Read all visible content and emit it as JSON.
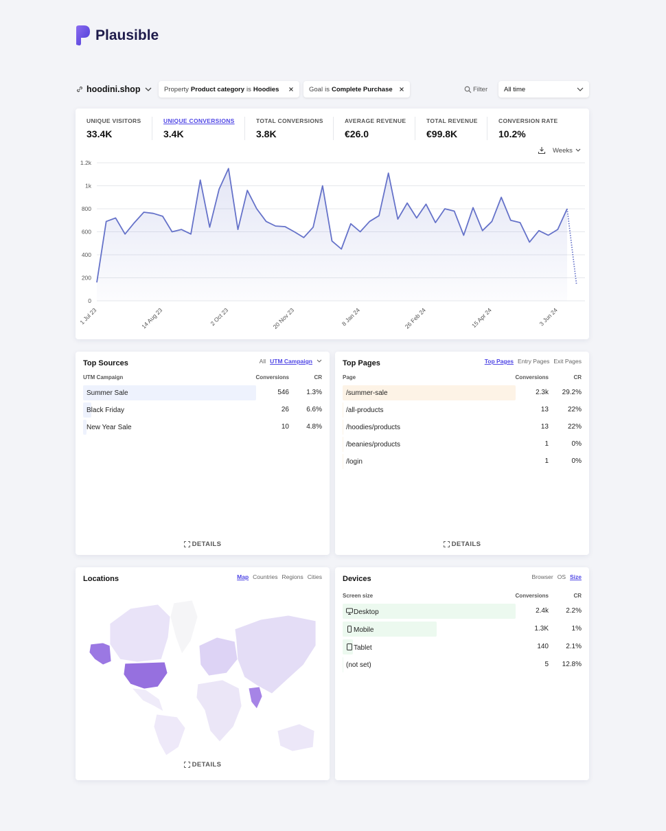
{
  "header": {
    "logo": "Plausible",
    "site": "hoodini.shop",
    "filters": [
      {
        "key": "Property",
        "property": "Product category",
        "op": "is",
        "value": "Hoodies"
      },
      {
        "key": "Goal",
        "op": "is",
        "value": "Complete Purchase"
      }
    ],
    "filter_button": "Filter",
    "period": "All time"
  },
  "metrics": [
    {
      "label": "UNIQUE VISITORS",
      "value": "33.4K"
    },
    {
      "label": "UNIQUE CONVERSIONS",
      "value": "3.4K"
    },
    {
      "label": "TOTAL CONVERSIONS",
      "value": "3.8K"
    },
    {
      "label": "AVERAGE REVENUE",
      "value": "€26.0"
    },
    {
      "label": "TOTAL REVENUE",
      "value": "€99.8K"
    },
    {
      "label": "CONVERSION RATE",
      "value": "10.2%"
    }
  ],
  "active_metric": 1,
  "interval": "Weeks",
  "chart_data": {
    "type": "line",
    "categories": [
      "1 Jul 23",
      null,
      null,
      null,
      null,
      null,
      null,
      "14 Aug 23",
      null,
      null,
      null,
      null,
      null,
      null,
      "2 Oct 23",
      null,
      null,
      null,
      null,
      null,
      null,
      "20 Nov 23",
      null,
      null,
      null,
      null,
      null,
      null,
      "8 Jan 24",
      null,
      null,
      null,
      null,
      null,
      null,
      "26 Feb 24",
      null,
      null,
      null,
      null,
      null,
      null,
      "15 Apr 24",
      null,
      null,
      null,
      null,
      null,
      null,
      "3 Jun 24",
      null,
      null
    ],
    "series": [
      {
        "color": "#6572c9",
        "values": [
          160,
          690,
          720,
          580,
          680,
          770,
          760,
          735,
          600,
          620,
          580,
          1050,
          640,
          970,
          1150,
          620,
          960,
          800,
          690,
          650,
          645,
          600,
          550,
          640,
          1000,
          520,
          450,
          670,
          600,
          690,
          740,
          1110,
          710,
          850,
          720,
          840,
          680,
          800,
          780,
          570,
          810,
          610,
          690,
          900,
          700,
          680,
          510,
          610,
          570,
          620,
          800,
          140
        ]
      }
    ],
    "last_segment_dotted": true,
    "ylim": [
      0,
      1200
    ],
    "yticks": [
      0,
      200,
      400,
      600,
      800,
      {
        "value": 1000,
        "label": "1k"
      },
      {
        "value": 1200,
        "label": "1.2k"
      }
    ],
    "grid": true
  },
  "top_sources": {
    "title": "Top Sources",
    "tabs": [
      "All",
      "UTM Campaign"
    ],
    "active_tab": 1,
    "columns": [
      "UTM Campaign",
      "Conversions",
      "CR"
    ],
    "rows": [
      {
        "name": "Summer Sale",
        "conversions": 546,
        "cr": "1.3%"
      },
      {
        "name": "Black Friday",
        "conversions": 26,
        "cr": "6.6%"
      },
      {
        "name": "New Year Sale",
        "conversions": 10,
        "cr": "4.8%"
      }
    ],
    "details": "DETAILS"
  },
  "top_pages": {
    "title": "Top Pages",
    "tabs": [
      "Top Pages",
      "Entry Pages",
      "Exit Pages"
    ],
    "active_tab": 0,
    "columns": [
      "Page",
      "Conversions",
      "CR"
    ],
    "rows": [
      {
        "name": "/summer-sale",
        "conversions": {
          "value": 2300,
          "label": "2.3k"
        },
        "cr": "29.2%"
      },
      {
        "name": "/all-products",
        "conversions": 13,
        "cr": "22%"
      },
      {
        "name": "/hoodies/products",
        "conversions": 13,
        "cr": "22%"
      },
      {
        "name": "/beanies/products",
        "conversions": 1,
        "cr": "0%"
      },
      {
        "name": "/login",
        "conversions": 1,
        "cr": "0%"
      }
    ],
    "details": "DETAILS"
  },
  "locations": {
    "title": "Locations",
    "tabs": [
      "Map",
      "Countries",
      "Regions",
      "Cities"
    ],
    "active_tab": 0,
    "details": "DETAILS"
  },
  "devices": {
    "title": "Devices",
    "tabs": [
      "Browser",
      "OS",
      "Size"
    ],
    "active_tab": 2,
    "columns": [
      "Screen size",
      "Conversions",
      "CR"
    ],
    "rows": [
      {
        "name": "Desktop",
        "conversions": {
          "value": 2400,
          "label": "2.4k"
        },
        "cr": "2.2%"
      },
      {
        "name": "Mobile",
        "conversions": {
          "value": 1300,
          "label": "1.3K"
        },
        "cr": "1%"
      },
      {
        "name": "Tablet",
        "conversions": 140,
        "cr": "2.1%"
      },
      {
        "name": "(not set)",
        "conversions": 5,
        "cr": "12.8%"
      }
    ]
  }
}
